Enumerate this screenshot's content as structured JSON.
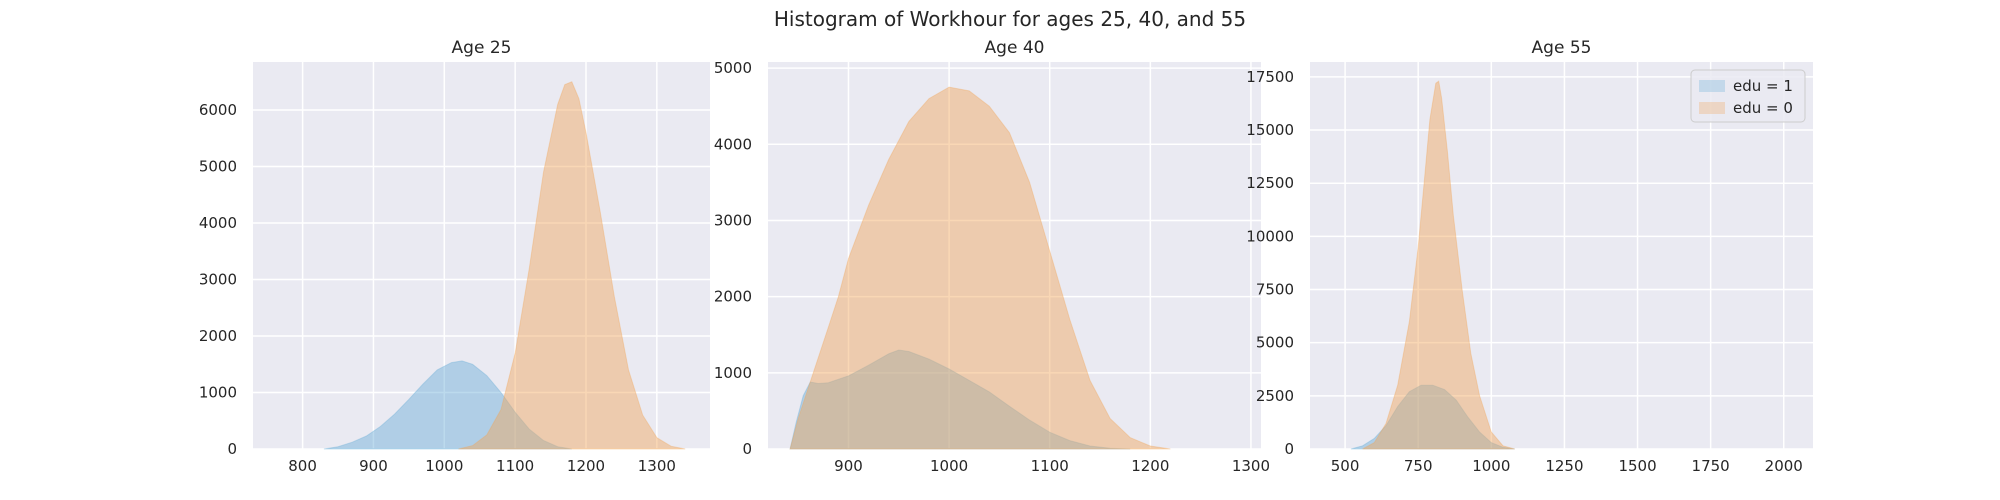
{
  "chart_data": {
    "type": "area",
    "title": "Histogram of Workhour for ages 25, 40, and 55",
    "background": "#eaeaf2",
    "grid": true,
    "legend": {
      "placement": "top-right",
      "panel": 2,
      "entries": [
        "edu = 1",
        "edu = 0"
      ]
    },
    "series_colors": {
      "edu = 1": "#6baed6",
      "edu = 0": "#f2a65a"
    },
    "panels": [
      {
        "title": "Age 25",
        "xlim": [
          730,
          1375
        ],
        "ylim": [
          0,
          6850
        ],
        "xticks": [
          800,
          900,
          1000,
          1100,
          1200,
          1300
        ],
        "yticks": [
          0,
          1000,
          2000,
          3000,
          4000,
          5000,
          6000
        ],
        "series": [
          {
            "name": "edu = 1",
            "x": [
              830,
              850,
              870,
              890,
              910,
              930,
              950,
              970,
              990,
              1010,
              1025,
              1040,
              1060,
              1080,
              1100,
              1120,
              1140,
              1160,
              1180
            ],
            "y": [
              0,
              40,
              120,
              230,
              400,
              620,
              880,
              1150,
              1400,
              1530,
              1560,
              1500,
              1300,
              1000,
              650,
              350,
              150,
              40,
              0
            ]
          },
          {
            "name": "edu = 0",
            "x": [
              1020,
              1040,
              1060,
              1080,
              1100,
              1120,
              1140,
              1160,
              1170,
              1180,
              1190,
              1200,
              1220,
              1240,
              1260,
              1280,
              1300,
              1320,
              1340
            ],
            "y": [
              0,
              60,
              250,
              700,
              1700,
              3200,
              4900,
              6100,
              6450,
              6500,
              6200,
              5600,
              4200,
              2700,
              1400,
              600,
              200,
              50,
              0
            ]
          }
        ]
      },
      {
        "title": "Age 40",
        "xlim": [
          820,
          1310
        ],
        "ylim": [
          0,
          5080
        ],
        "xticks": [
          900,
          1000,
          1100,
          1200,
          1300
        ],
        "yticks": [
          0,
          1000,
          2000,
          3000,
          4000,
          5000
        ],
        "series": [
          {
            "name": "edu = 1",
            "x": [
              842,
              848,
              855,
              862,
              870,
              880,
              900,
              920,
              940,
              950,
              960,
              980,
              1000,
              1020,
              1040,
              1060,
              1080,
              1100,
              1120,
              1140,
              1160,
              1180
            ],
            "y": [
              0,
              350,
              700,
              880,
              860,
              870,
              960,
              1100,
              1250,
              1300,
              1280,
              1180,
              1050,
              900,
              750,
              560,
              380,
              220,
              110,
              40,
              10,
              0
            ]
          },
          {
            "name": "edu = 0",
            "x": [
              842,
              850,
              860,
              870,
              880,
              890,
              900,
              920,
              940,
              960,
              980,
              1000,
              1020,
              1040,
              1060,
              1080,
              1100,
              1120,
              1140,
              1160,
              1180,
              1200,
              1220
            ],
            "y": [
              0,
              400,
              800,
              1200,
              1600,
              2000,
              2500,
              3200,
              3800,
              4300,
              4600,
              4750,
              4700,
              4500,
              4150,
              3500,
              2600,
              1700,
              900,
              400,
              150,
              40,
              0
            ]
          }
        ]
      },
      {
        "title": "Age 55",
        "xlim": [
          380,
          2100
        ],
        "ylim": [
          0,
          18200
        ],
        "xticks": [
          500,
          750,
          1000,
          1250,
          1500,
          1750,
          2000
        ],
        "yticks": [
          0,
          2500,
          5000,
          7500,
          10000,
          12500,
          15000,
          17500
        ],
        "series": [
          {
            "name": "edu = 1",
            "x": [
              520,
              560,
              600,
              640,
              680,
              720,
              760,
              800,
              840,
              880,
              920,
              960,
              1000,
              1040,
              1080
            ],
            "y": [
              0,
              150,
              500,
              1100,
              2000,
              2700,
              3000,
              3000,
              2800,
              2300,
              1500,
              800,
              300,
              80,
              0
            ]
          },
          {
            "name": "edu = 0",
            "x": [
              560,
              600,
              640,
              680,
              720,
              750,
              770,
              790,
              810,
              820,
              830,
              850,
              870,
              900,
              930,
              960,
              1000,
              1040,
              1080
            ],
            "y": [
              0,
              300,
              1200,
              3000,
              6000,
              9500,
              12500,
              15500,
              17200,
              17300,
              16500,
              14000,
              11000,
              7500,
              4500,
              2500,
              800,
              150,
              0
            ]
          }
        ]
      }
    ]
  }
}
